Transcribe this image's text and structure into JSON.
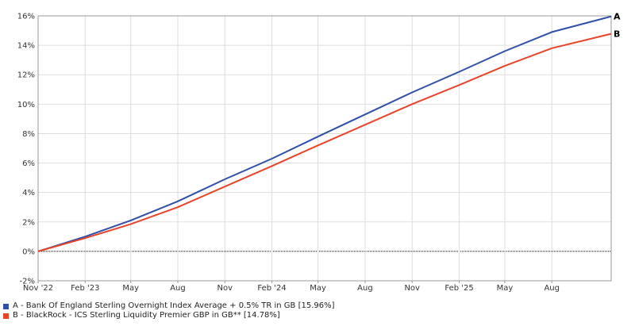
{
  "chart_data": {
    "type": "line",
    "title": "",
    "xlabel": "",
    "ylabel": "",
    "x_range": [
      "2022-11-01",
      "2025-11-25"
    ],
    "ylim": [
      -2,
      16
    ],
    "y_unit": "%",
    "grid": true,
    "legend_position": "bottom-left",
    "x_ticks": [
      {
        "date": "2022-11-01",
        "label": "Nov '22"
      },
      {
        "date": "2023-02-01",
        "label": "Feb '23"
      },
      {
        "date": "2023-05-01",
        "label": "May"
      },
      {
        "date": "2023-08-01",
        "label": "Aug"
      },
      {
        "date": "2023-11-01",
        "label": "Nov"
      },
      {
        "date": "2024-02-01",
        "label": "Feb '24"
      },
      {
        "date": "2024-05-01",
        "label": "May"
      },
      {
        "date": "2024-08-01",
        "label": "Aug"
      },
      {
        "date": "2024-11-01",
        "label": "Nov"
      },
      {
        "date": "2025-02-01",
        "label": "Feb '25"
      },
      {
        "date": "2025-05-01",
        "label": "May"
      },
      {
        "date": "2025-08-01",
        "label": "Aug"
      }
    ],
    "y_ticks": [
      {
        "value": -2,
        "label": "-2%"
      },
      {
        "value": 0,
        "label": "0%"
      },
      {
        "value": 2,
        "label": "2%"
      },
      {
        "value": 4,
        "label": "4%"
      },
      {
        "value": 6,
        "label": "6%"
      },
      {
        "value": 8,
        "label": "8%"
      },
      {
        "value": 10,
        "label": "10%"
      },
      {
        "value": 12,
        "label": "12%"
      },
      {
        "value": 14,
        "label": "14%"
      },
      {
        "value": 16,
        "label": "16%"
      }
    ],
    "series": [
      {
        "name": "A - Bank Of England Sterling Overnight Index Average + 0.5% TR in GB [15.96%]",
        "end_label": "A",
        "color": "#2f4fa8",
        "x": [
          "2022-11-01",
          "2023-02-01",
          "2023-05-01",
          "2023-08-01",
          "2023-11-01",
          "2024-02-01",
          "2024-05-01",
          "2024-08-01",
          "2024-11-01",
          "2025-02-01",
          "2025-05-01",
          "2025-08-01",
          "2025-11-25"
        ],
        "y": [
          0.0,
          1.0,
          2.1,
          3.4,
          4.9,
          6.3,
          7.8,
          9.3,
          10.8,
          12.2,
          13.6,
          14.9,
          15.96
        ]
      },
      {
        "name": "B - BlackRock - ICS Sterling Liquidity Premier GBP in GB** [14.78%]",
        "end_label": "B",
        "color": "#e8442a",
        "x": [
          "2022-11-01",
          "2023-02-01",
          "2023-05-01",
          "2023-08-01",
          "2023-11-01",
          "2024-02-01",
          "2024-05-01",
          "2024-08-01",
          "2024-11-01",
          "2025-02-01",
          "2025-05-01",
          "2025-08-01",
          "2025-11-25"
        ],
        "y": [
          0.0,
          0.9,
          1.85,
          3.0,
          4.4,
          5.8,
          7.2,
          8.6,
          10.0,
          11.3,
          12.6,
          13.8,
          14.78
        ]
      }
    ]
  }
}
